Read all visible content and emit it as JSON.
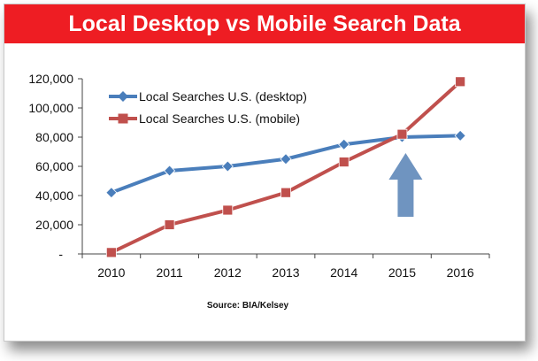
{
  "title": "Local Desktop vs Mobile Search Data",
  "source": "Source: BIA/Kelsey",
  "chart_data": {
    "type": "line",
    "x": [
      "2010",
      "2011",
      "2012",
      "2013",
      "2014",
      "2015",
      "2016"
    ],
    "ylim": [
      0,
      120000
    ],
    "y_ticks": [
      "-",
      "20,000",
      "40,000",
      "60,000",
      "80,000",
      "100,000",
      "120,000"
    ],
    "grid": false,
    "legend_position": "top-left",
    "series": [
      {
        "name": "Local Searches U.S. (desktop)",
        "color": "#4a7ebb",
        "marker": "diamond",
        "values": [
          42000,
          57000,
          60000,
          65000,
          75000,
          80000,
          81000
        ]
      },
      {
        "name": "Local Searches U.S. (mobile)",
        "color": "#c0504d",
        "marker": "square",
        "values": [
          1000,
          20000,
          30000,
          42000,
          63000,
          82000,
          118000
        ]
      }
    ],
    "annotation": {
      "type": "arrow-up",
      "at_x": "2015",
      "color": "#6f94c0"
    }
  }
}
